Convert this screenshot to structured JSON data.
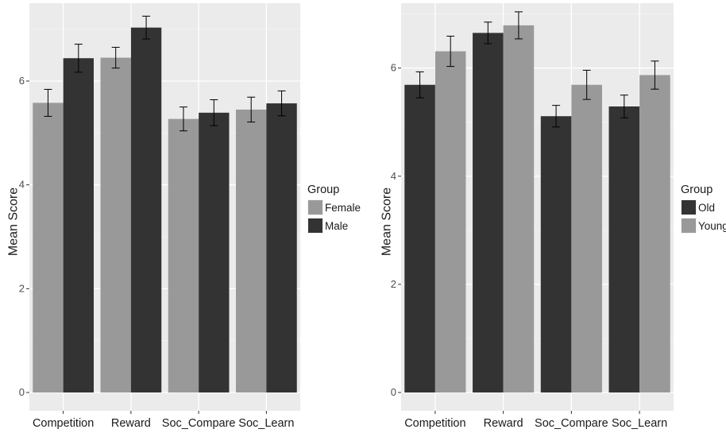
{
  "chart_data": [
    {
      "type": "bar",
      "ylabel": "Mean Score",
      "ylim": [
        0,
        7.5
      ],
      "yticks": [
        0,
        2,
        4,
        6
      ],
      "grid": true,
      "legend_title": "Group",
      "legend_position": "right",
      "categories": [
        "Competition",
        "Reward",
        "Soc_Compare",
        "Soc_Learn"
      ],
      "series": [
        {
          "name": "Female",
          "color": "#999999",
          "values": [
            5.58,
            6.45,
            5.27,
            5.45
          ],
          "error": [
            0.26,
            0.2,
            0.23,
            0.24
          ]
        },
        {
          "name": "Male",
          "color": "#333333",
          "values": [
            6.44,
            7.03,
            5.39,
            5.57
          ],
          "error": [
            0.27,
            0.22,
            0.25,
            0.24
          ]
        }
      ]
    },
    {
      "type": "bar",
      "ylabel": "Mean Score",
      "ylim": [
        0,
        7.2
      ],
      "yticks": [
        0,
        2,
        4,
        6
      ],
      "grid": true,
      "legend_title": "Group",
      "legend_position": "right",
      "categories": [
        "Competition",
        "Reward",
        "Soc_Compare",
        "Soc_Learn"
      ],
      "series": [
        {
          "name": "Old",
          "color": "#333333",
          "values": [
            5.69,
            6.65,
            5.11,
            5.29
          ],
          "error": [
            0.24,
            0.2,
            0.2,
            0.21
          ]
        },
        {
          "name": "Young",
          "color": "#999999",
          "values": [
            6.31,
            6.79,
            5.69,
            5.87
          ],
          "error": [
            0.28,
            0.25,
            0.27,
            0.26
          ]
        }
      ]
    }
  ]
}
